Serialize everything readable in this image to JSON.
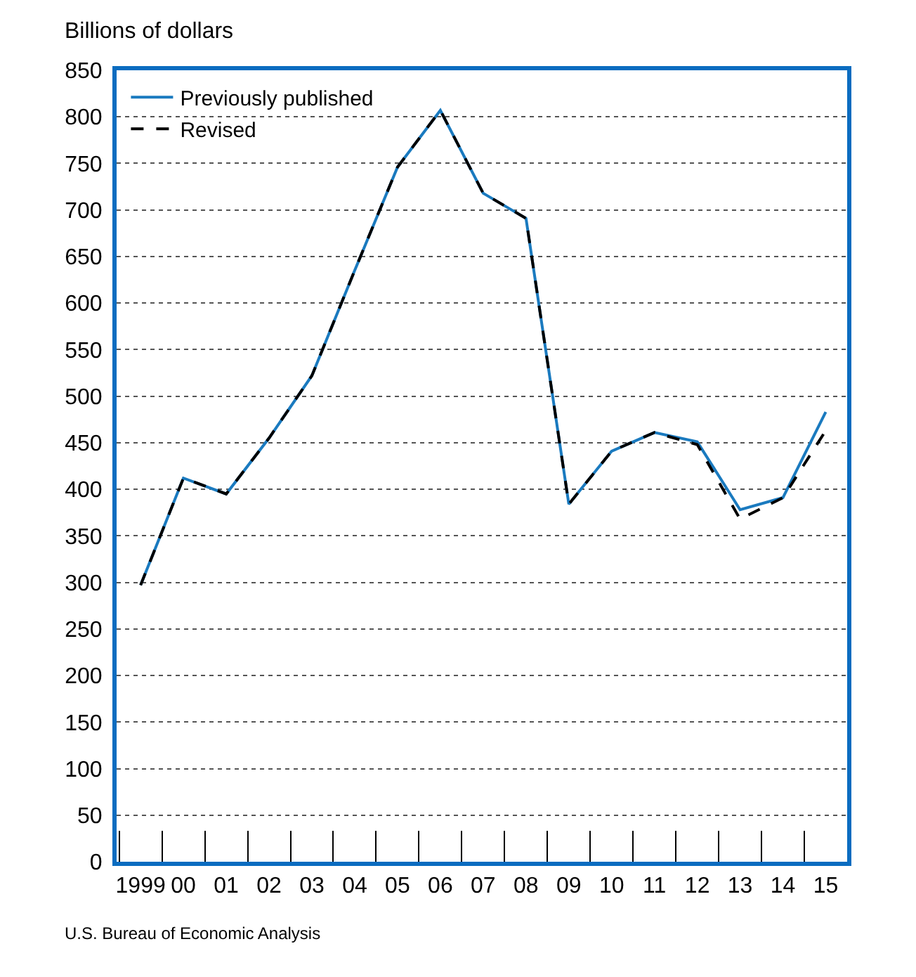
{
  "chart_data": {
    "type": "line",
    "ylabel": "Billions of dollars",
    "categories": [
      "1999",
      "00",
      "01",
      "02",
      "03",
      "04",
      "05",
      "06",
      "07",
      "08",
      "09",
      "10",
      "11",
      "12",
      "13",
      "14",
      "15"
    ],
    "series": [
      {
        "name": "Previously published",
        "color": "#1a7abf",
        "line_style": "solid",
        "values": [
          297,
          412,
          395,
          455,
          522,
          635,
          746,
          807,
          718,
          691,
          384,
          441,
          461,
          451,
          378,
          391,
          483
        ]
      },
      {
        "name": "Revised",
        "color": "#000000",
        "line_style": "dashed",
        "values": [
          297,
          412,
          395,
          455,
          522,
          635,
          746,
          807,
          718,
          691,
          384,
          441,
          461,
          448,
          368,
          391,
          463
        ]
      }
    ],
    "ylim": [
      0,
      850
    ],
    "yticks": [
      0,
      50,
      100,
      150,
      200,
      250,
      300,
      350,
      400,
      450,
      500,
      550,
      600,
      650,
      700,
      750,
      800,
      850
    ],
    "grid": "y",
    "legend": "top left",
    "marker": "none",
    "annotations": [
      "U.S. Bureau of Economic Analysis"
    ]
  }
}
